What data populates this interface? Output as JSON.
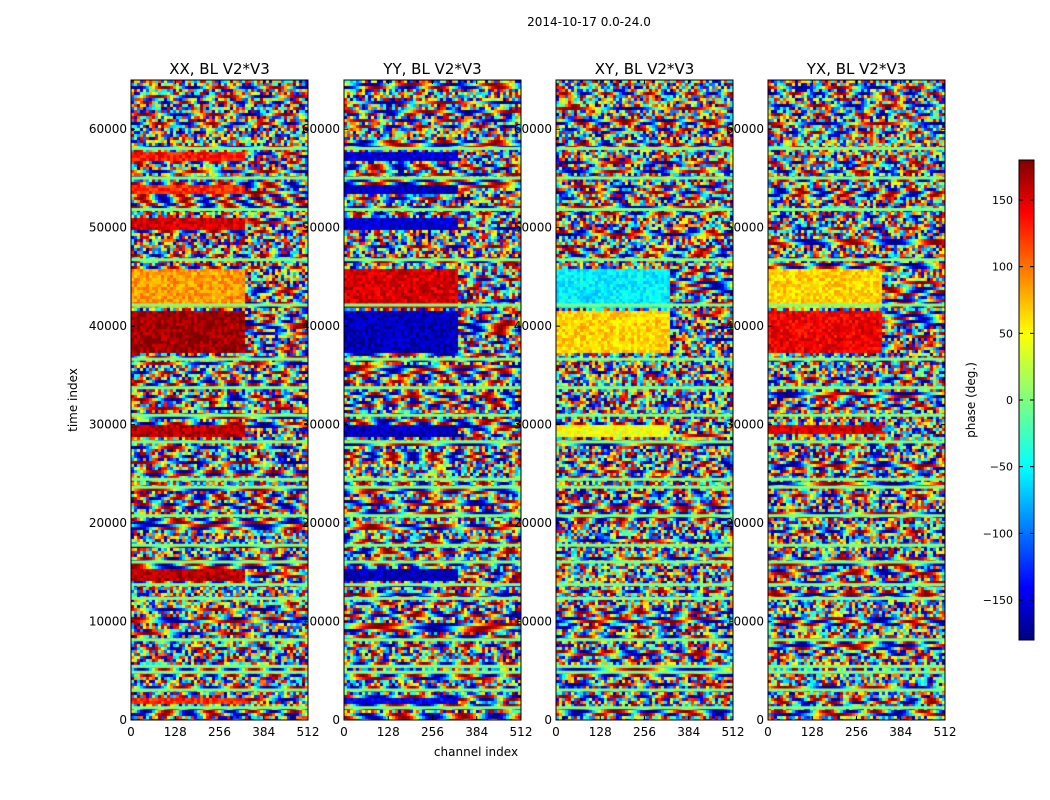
{
  "figure_title": "2014-10-17 0.0-24.0",
  "chart_data": {
    "type": "heatmap",
    "title": "2014-10-17 0.0-24.0",
    "xlabel": "channel index",
    "ylabel": "time index",
    "xlim": [
      0,
      512
    ],
    "ylim": [
      0,
      65000
    ],
    "x_ticks": [
      0,
      128,
      256,
      384,
      512
    ],
    "y_ticks": [
      0,
      10000,
      20000,
      30000,
      40000,
      50000,
      60000
    ],
    "colormap": "jet",
    "colorbar": {
      "label": "phase (deg.)",
      "range": [
        -180,
        180
      ],
      "ticks": [
        -150,
        -100,
        -50,
        0,
        50,
        100,
        150
      ]
    },
    "panels": [
      {
        "title": "XX, BL V2*V3",
        "pol": "XX",
        "coherent_bands": [
          [
            49800,
            51200,
            150
          ],
          [
            53500,
            54400,
            120
          ],
          [
            56800,
            57900,
            130
          ],
          [
            37500,
            41800,
            170
          ],
          [
            42000,
            46000,
            80
          ],
          [
            28800,
            30000,
            160
          ],
          [
            14300,
            15500,
            160
          ],
          [
            1800,
            2300,
            120
          ]
        ]
      },
      {
        "title": "YY, BL V2*V3",
        "pol": "YY",
        "coherent_bands": [
          [
            49800,
            51200,
            -150
          ],
          [
            53500,
            54400,
            -160
          ],
          [
            56800,
            57900,
            -150
          ],
          [
            37500,
            41800,
            -160
          ],
          [
            42000,
            46000,
            150
          ],
          [
            28800,
            30000,
            -160
          ],
          [
            14300,
            15500,
            -160
          ],
          [
            1800,
            2300,
            -140
          ]
        ]
      },
      {
        "title": "XY, BL V2*V3",
        "pol": "XY",
        "coherent_bands": [
          [
            42000,
            46000,
            -50
          ],
          [
            37500,
            41800,
            60
          ],
          [
            29000,
            30000,
            40
          ]
        ]
      },
      {
        "title": "YX, BL V2*V3",
        "pol": "YX",
        "coherent_bands": [
          [
            42000,
            46000,
            60
          ],
          [
            37500,
            41800,
            140
          ],
          [
            29300,
            30000,
            150
          ]
        ]
      }
    ],
    "flagged_rows": [
      1400,
      3200,
      5000,
      5600,
      8300,
      12500,
      13900,
      16200,
      17900,
      20900,
      23800,
      24600,
      28400,
      31100,
      33900,
      36800,
      42300,
      46900,
      52000,
      55200,
      58200
    ]
  },
  "colors": {
    "jet_stops": [
      "#000080",
      "#0000ff",
      "#00ffff",
      "#7fff7f",
      "#ffff00",
      "#ff0000",
      "#800000"
    ],
    "flag_color": "#7fff7f"
  }
}
